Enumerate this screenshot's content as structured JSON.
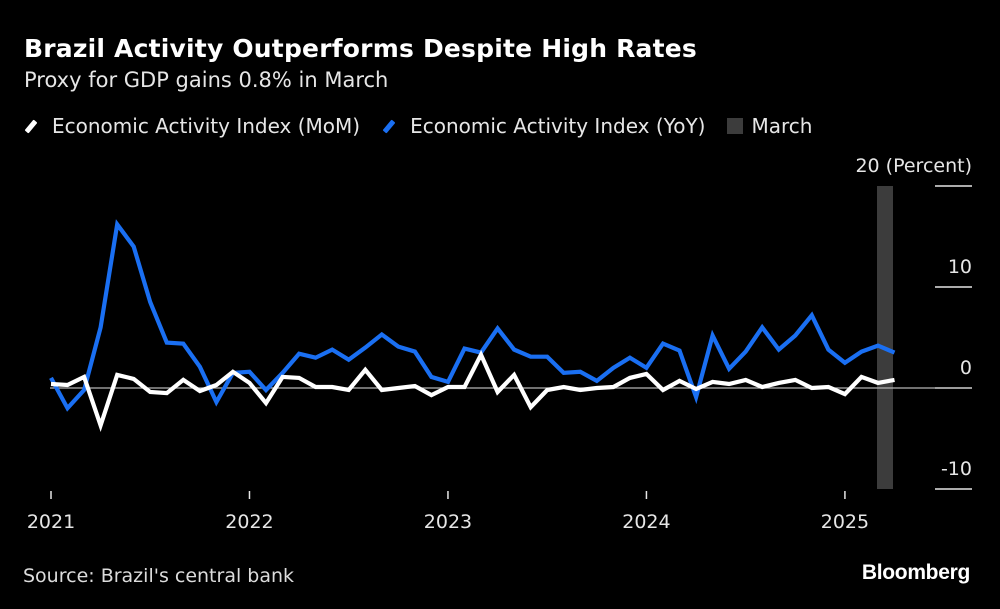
{
  "header": {
    "title": "Brazil Activity Outperforms Despite High Rates",
    "subtitle": "Proxy for GDP gains 0.8% in March"
  },
  "legend": [
    {
      "label": "Economic Activity Index (MoM)",
      "icon": "line-swatch-icon",
      "color": "#ffffff"
    },
    {
      "label": "Economic Activity Index (YoY)",
      "icon": "line-swatch-icon",
      "color": "#1a6ff2"
    },
    {
      "label": "March",
      "icon": "box-swatch-icon",
      "color": "#3c3c3c"
    }
  ],
  "footer": {
    "source": "Source: Brazil's central bank",
    "brand": "Bloomberg"
  },
  "chart_data": {
    "type": "line",
    "title": "Brazil Activity Outperforms Despite High Rates",
    "subtitle": "Proxy for GDP gains 0.8% in March",
    "xlabel": "",
    "ylabel": "(Percent)",
    "ylim": [
      -10,
      20
    ],
    "yticks": [
      20,
      10,
      0,
      -10
    ],
    "ytick_labels": [
      "20 (Percent)",
      "10",
      "0",
      "-10"
    ],
    "xticks": [
      "2021",
      "2022",
      "2023",
      "2024",
      "2025"
    ],
    "grid": false,
    "legend_position": "top-left",
    "highlight": {
      "label": "March",
      "period": "2025-03",
      "color": "#3c3c3c"
    },
    "x": [
      "2020-12",
      "2021-01",
      "2021-02",
      "2021-03",
      "2021-04",
      "2021-05",
      "2021-06",
      "2021-07",
      "2021-08",
      "2021-09",
      "2021-10",
      "2021-11",
      "2021-12",
      "2022-01",
      "2022-02",
      "2022-03",
      "2022-04",
      "2022-05",
      "2022-06",
      "2022-07",
      "2022-08",
      "2022-09",
      "2022-10",
      "2022-11",
      "2022-12",
      "2023-01",
      "2023-02",
      "2023-03",
      "2023-04",
      "2023-05",
      "2023-06",
      "2023-07",
      "2023-08",
      "2023-09",
      "2023-10",
      "2023-11",
      "2023-12",
      "2024-01",
      "2024-02",
      "2024-03",
      "2024-04",
      "2024-05",
      "2024-06",
      "2024-07",
      "2024-08",
      "2024-09",
      "2024-10",
      "2024-11",
      "2024-12",
      "2025-01",
      "2025-02",
      "2025-03"
    ],
    "series": [
      {
        "name": "Economic Activity Index (YoY)",
        "color": "#1a6ff2",
        "values": [
          1.0,
          -2.0,
          -0.2,
          6.0,
          16.2,
          14.0,
          8.5,
          4.5,
          4.4,
          2.1,
          -1.4,
          1.5,
          1.6,
          -0.2,
          1.5,
          3.4,
          3.0,
          3.8,
          2.8,
          4.0,
          5.3,
          4.1,
          3.6,
          1.1,
          0.6,
          3.9,
          3.5,
          5.9,
          3.8,
          3.1,
          3.1,
          1.5,
          1.6,
          0.7,
          2.0,
          3.0,
          2.0,
          4.4,
          3.7,
          -0.9,
          5.2,
          1.9,
          3.6,
          6.0,
          3.8,
          5.2,
          7.2,
          3.8,
          2.5,
          3.6,
          4.2,
          3.5
        ]
      },
      {
        "name": "Economic Activity Index (MoM)",
        "color": "#ffffff",
        "values": [
          0.4,
          0.3,
          1.1,
          -3.7,
          1.3,
          0.9,
          -0.4,
          -0.5,
          0.8,
          -0.3,
          0.3,
          1.6,
          0.5,
          -1.5,
          1.1,
          1.0,
          0.1,
          0.1,
          -0.2,
          1.8,
          -0.2,
          0.0,
          0.2,
          -0.7,
          0.1,
          0.1,
          3.3,
          -0.4,
          1.3,
          -1.9,
          -0.2,
          0.1,
          -0.2,
          0.0,
          0.1,
          1.0,
          1.4,
          -0.2,
          0.7,
          -0.1,
          0.6,
          0.4,
          0.8,
          0.1,
          0.5,
          0.8,
          0.0,
          0.1,
          -0.6,
          1.1,
          0.5,
          0.8
        ]
      }
    ]
  }
}
